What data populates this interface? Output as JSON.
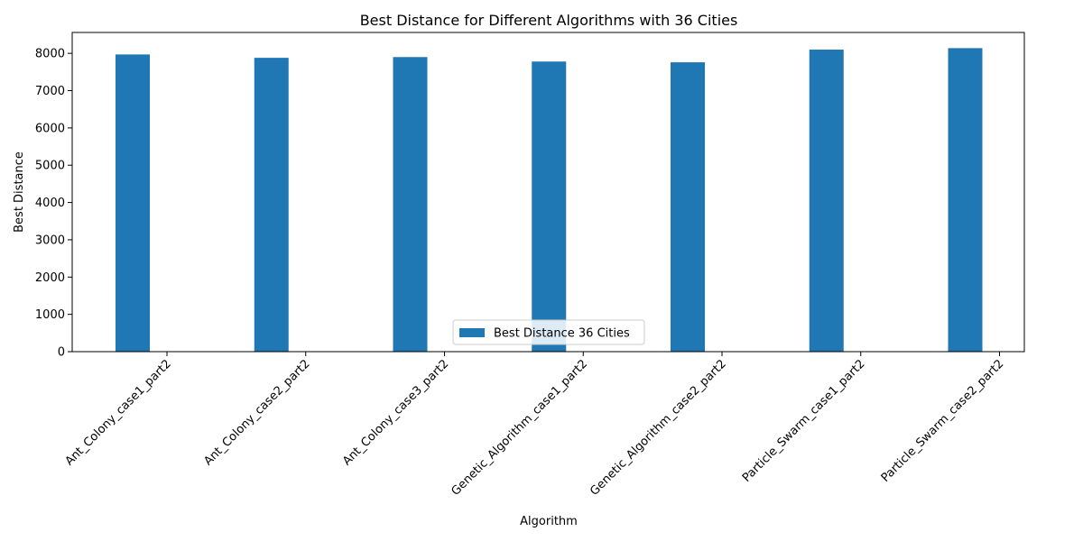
{
  "chart_data": {
    "type": "bar",
    "title": "Best Distance for Different Algorithms with 36 Cities",
    "xlabel": "Algorithm",
    "ylabel": "Best Distance",
    "categories": [
      "Ant_Colony_case1_part2",
      "Ant_Colony_case2_part2",
      "Ant_Colony_case3_part2",
      "Genetic_Algorithm_case1_part2",
      "Genetic_Algorithm_case2_part2",
      "Particle_Swarm_case1_part2",
      "Particle_Swarm_case2_part2"
    ],
    "series": [
      {
        "name": "Best Distance 36 Cities",
        "color": "#1f77b4",
        "values": [
          7970,
          7880,
          7900,
          7780,
          7760,
          8100,
          8140
        ]
      }
    ],
    "ylim": [
      0,
      8560
    ],
    "yticks": [
      0,
      1000,
      2000,
      3000,
      4000,
      5000,
      6000,
      7000,
      8000
    ],
    "legend_position": "lower center",
    "grid": false
  }
}
